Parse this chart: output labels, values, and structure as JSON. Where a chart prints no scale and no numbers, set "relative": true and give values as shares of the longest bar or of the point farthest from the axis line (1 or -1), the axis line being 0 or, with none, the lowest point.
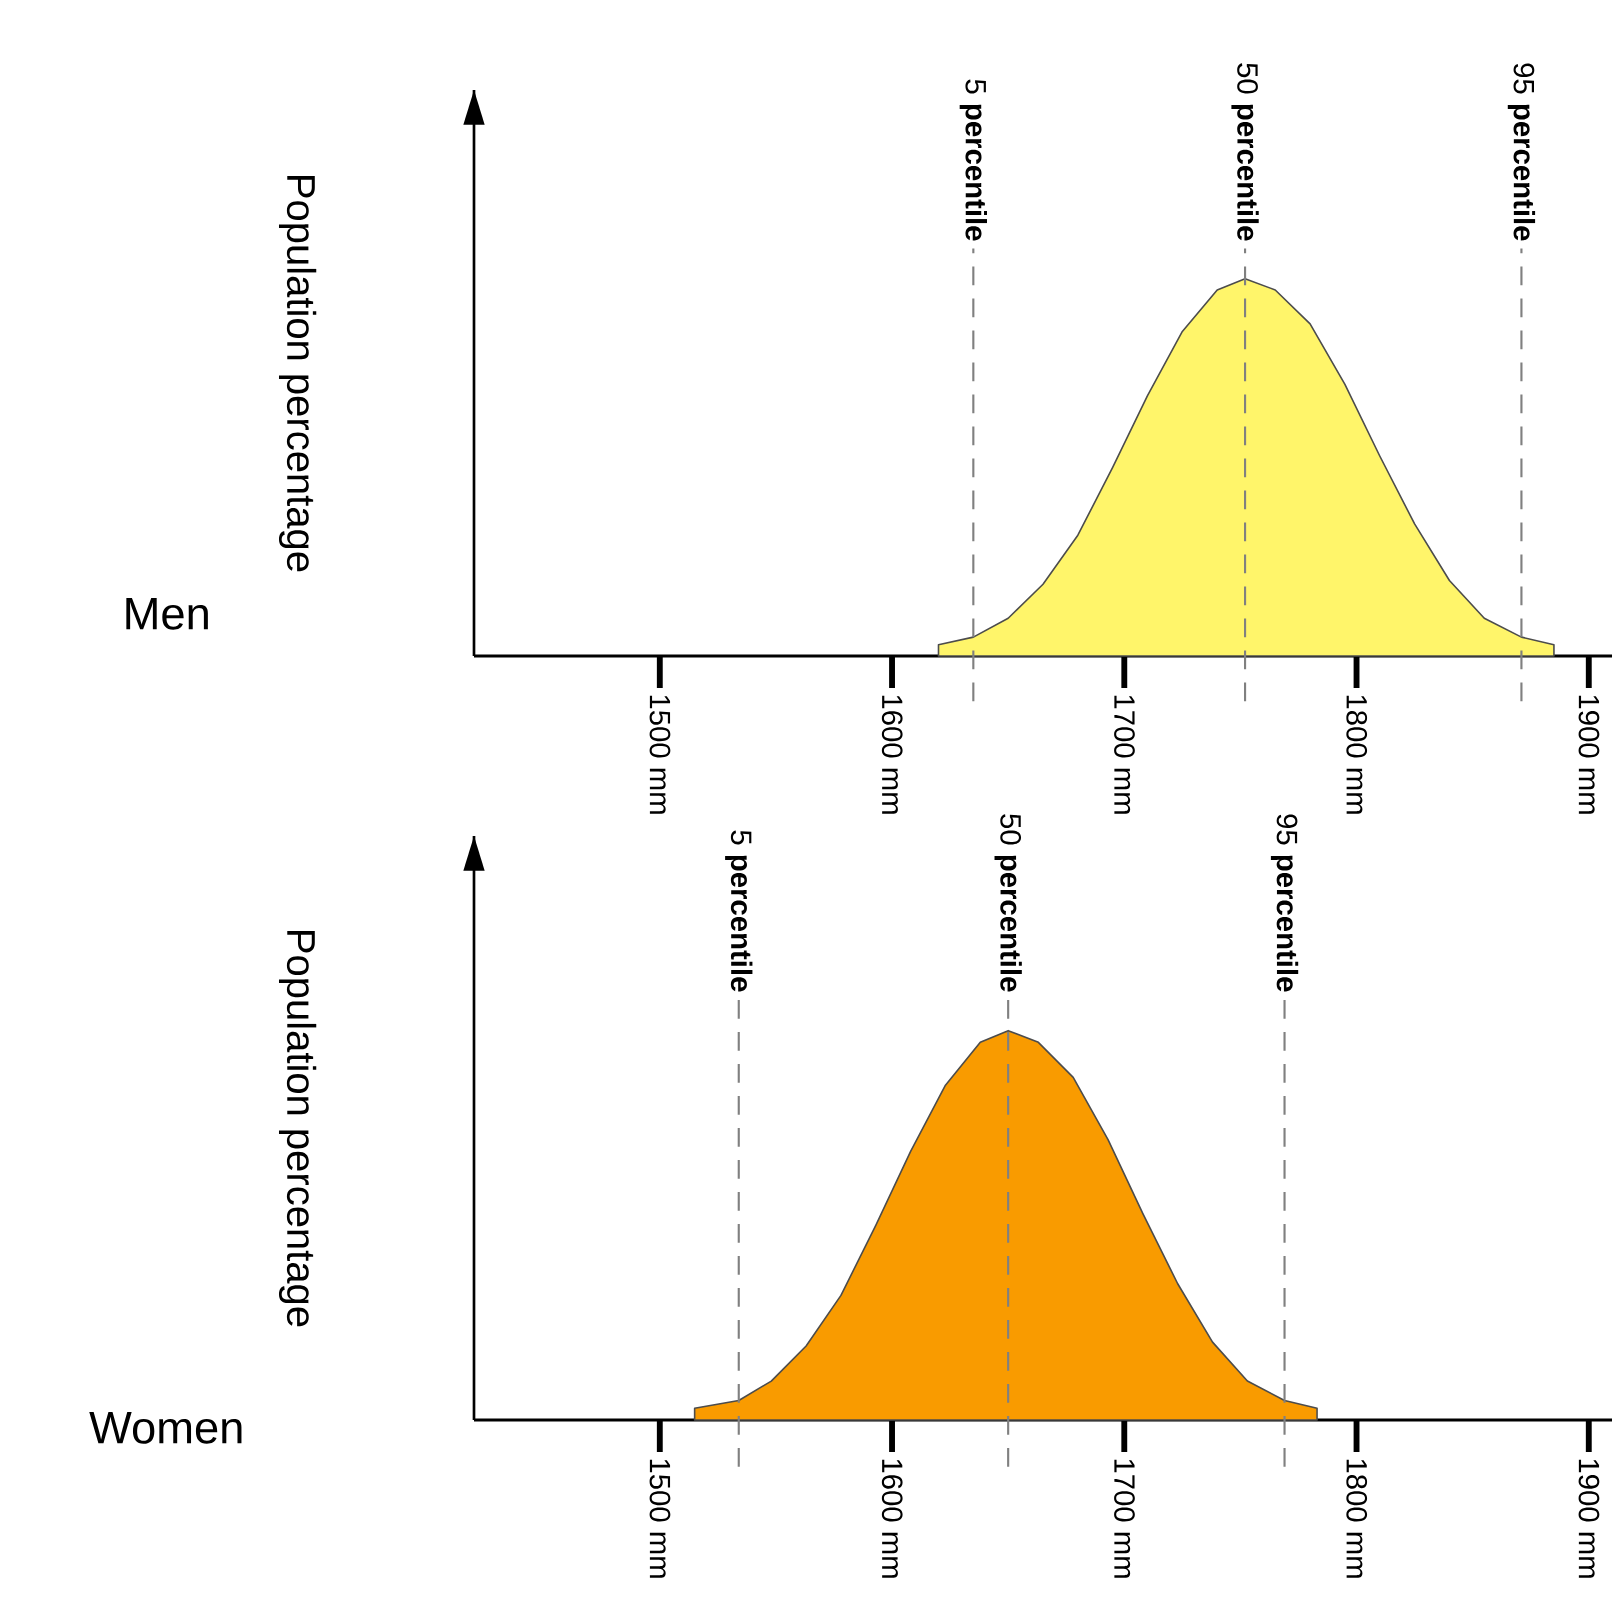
{
  "chart_data": [
    {
      "type": "area",
      "title": "Men",
      "ylabel": "Population percentage",
      "relative": true,
      "color": "#fff56a",
      "x": [
        1620,
        1635,
        1650,
        1665,
        1680,
        1695,
        1710,
        1725,
        1740,
        1752,
        1765,
        1780,
        1795,
        1810,
        1825,
        1840,
        1855,
        1871,
        1885
      ],
      "values": [
        0.03,
        0.05,
        0.1,
        0.19,
        0.32,
        0.5,
        0.69,
        0.86,
        0.97,
        1.0,
        0.97,
        0.88,
        0.72,
        0.53,
        0.35,
        0.2,
        0.1,
        0.05,
        0.03
      ],
      "xlim": [
        1420,
        1910
      ],
      "xticks": [
        {
          "value": 1500,
          "label": "1500 mm"
        },
        {
          "value": 1600,
          "label": "1600 mm"
        },
        {
          "value": 1700,
          "label": "1700 mm"
        },
        {
          "value": 1800,
          "label": "1800 mm"
        },
        {
          "value": 1900,
          "label": "1900 mm"
        }
      ],
      "ref_lines": [
        {
          "axis": "x",
          "value": 1635,
          "label": "5 **percentile**",
          "color": "#808080",
          "line_style": "dashed"
        },
        {
          "axis": "x",
          "value": 1752,
          "label": "50 **percentile**",
          "color": "#808080",
          "line_style": "dashed"
        },
        {
          "axis": "x",
          "value": 1871,
          "label": "95 **percentile**",
          "color": "#808080",
          "line_style": "dashed"
        }
      ]
    },
    {
      "type": "area",
      "title": "Women",
      "ylabel": "Population percentage",
      "relative": true,
      "color": "#f99b00",
      "x": [
        1515,
        1534,
        1548,
        1563,
        1578,
        1593,
        1608,
        1623,
        1638,
        1650,
        1663,
        1678,
        1693,
        1708,
        1723,
        1738,
        1753,
        1769,
        1783
      ],
      "values": [
        0.03,
        0.05,
        0.1,
        0.19,
        0.32,
        0.5,
        0.69,
        0.86,
        0.97,
        1.0,
        0.97,
        0.88,
        0.72,
        0.53,
        0.35,
        0.2,
        0.1,
        0.05,
        0.03
      ],
      "xlim": [
        1420,
        1910
      ],
      "xticks": [
        {
          "value": 1500,
          "label": "1500 mm"
        },
        {
          "value": 1600,
          "label": "1600 mm"
        },
        {
          "value": 1700,
          "label": "1700 mm"
        },
        {
          "value": 1800,
          "label": "1800 mm"
        },
        {
          "value": 1900,
          "label": "1900 mm"
        }
      ],
      "ref_lines": [
        {
          "axis": "x",
          "value": 1534,
          "label": "5 **percentile**",
          "color": "#808080",
          "line_style": "dashed"
        },
        {
          "axis": "x",
          "value": 1650,
          "label": "50 **percentile**",
          "color": "#808080",
          "line_style": "dashed"
        },
        {
          "axis": "x",
          "value": 1769,
          "label": "95 **percentile**",
          "color": "#808080",
          "line_style": "dashed"
        }
      ]
    }
  ]
}
